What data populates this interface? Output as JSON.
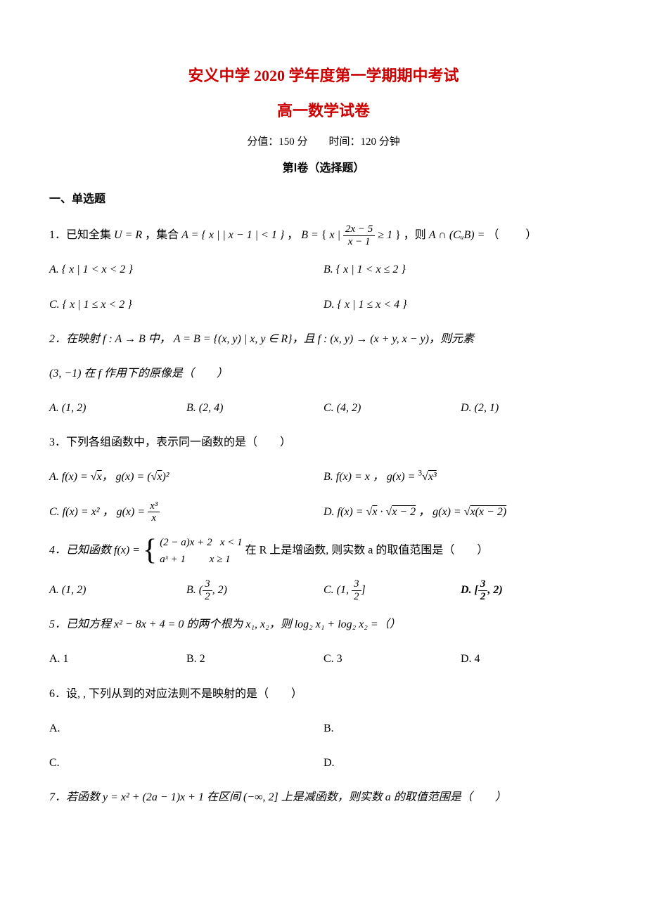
{
  "colors": {
    "title": "#cc0000",
    "text": "#000000",
    "bg": "#ffffff"
  },
  "header": {
    "title_main": "安义中学 2020 学年度第一学期期中考试",
    "title_sub": "高一数学试卷",
    "meta": "分值：150 分　　时间：120 分钟",
    "volume": "第Ⅰ卷（选择题）"
  },
  "section1_header": "一、单选题",
  "q1": {
    "prefix": "1．已知全集",
    "u_eq": "U = R",
    "mid1": "，集合",
    "setA": "A = { x | | x − 1 | < 1 }",
    "mid2": "，",
    "setB_pre": "B = ",
    "setB_body": "x | ",
    "frac_num": "2x − 5",
    "frac_den": "x − 1",
    "setB_post": " ≥ 1",
    "mid3": "，则",
    "expr": "A ∩ (CᵤB) =",
    "tail": "（　　）",
    "options": {
      "A": "A. { x | 1 < x < 2 }",
      "B": "B. { x | 1 < x ≤ 2 }",
      "C": "C. { x | 1 ≤ x < 2 }",
      "D": "D. { x | 1 ≤ x < 4 }"
    }
  },
  "q2": {
    "line": "2．在映射 f : A → B 中， A = B = {(x, y) | x, y ∈ R}，且 f : (x, y) → (x + y, x − y)，则元素",
    "line2": "(3, −1) 在 f 作用下的原像是（　　）",
    "options": {
      "A": "A. (1, 2)",
      "B": "B. (2, 4)",
      "C": "C. (4, 2)",
      "D": "D. (2, 1)"
    }
  },
  "q3": {
    "line": "3．下列各组函数中，表示同一函数的是（　　）",
    "optA_pre": "A. f(x) = ",
    "optA_sqrt": "x",
    "optA_mid": "， g(x) = (",
    "optA_sqrt2": "x",
    "optA_post": ")²",
    "optB_pre": "B. f(x) = x ， g(x) = ",
    "optB_cbrt": "x³",
    "optC_pre": "C. f(x) = x² ， g(x) = ",
    "optC_num": "x³",
    "optC_den": "x",
    "optD_pre": "D. f(x) = ",
    "optD_s1": "x",
    "optD_mid": " · ",
    "optD_s2": "x − 2",
    "optD_mid2": " ， g(x) = ",
    "optD_s3": "x(x − 2)"
  },
  "q4": {
    "prefix": "4．已知函数 f(x) = ",
    "case1_l": "(2 − a)x + 2",
    "case1_r": "x < 1",
    "case2_l": "aˣ + 1",
    "case2_r": "x ≥ 1",
    "suffix": " 在 R 上是增函数, 则实数 a 的取值范围是（　　）",
    "options": {
      "A": "A. (1, 2)",
      "B_pre": "B. (",
      "B_num": "3",
      "B_den": "2",
      "B_post": ", 2)",
      "C_pre": "C. (1, ",
      "C_num": "3",
      "C_den": "2",
      "C_post": "]",
      "D_pre": "D. [",
      "D_num": "3",
      "D_den": "2",
      "D_post": ", 2)"
    }
  },
  "q5": {
    "line": "5．已知方程 x² − 8x + 4 = 0 的两个根为 x₁, x₂，则 log₂ x₁ + log₂ x₂ =（）",
    "options": {
      "A": "A. 1",
      "B": "B. 2",
      "C": "C. 3",
      "D": "D. 4"
    }
  },
  "q6": {
    "line": "6．设, , 下列从到的对应法则不是映射的是（　　）",
    "options": {
      "A": "A.",
      "B": "B.",
      "C": "C.",
      "D": "D."
    }
  },
  "q7": {
    "line": "7．若函数 y = x² + (2a − 1)x + 1 在区间 (−∞, 2] 上是减函数，则实数 a 的取值范围是（　　）"
  }
}
